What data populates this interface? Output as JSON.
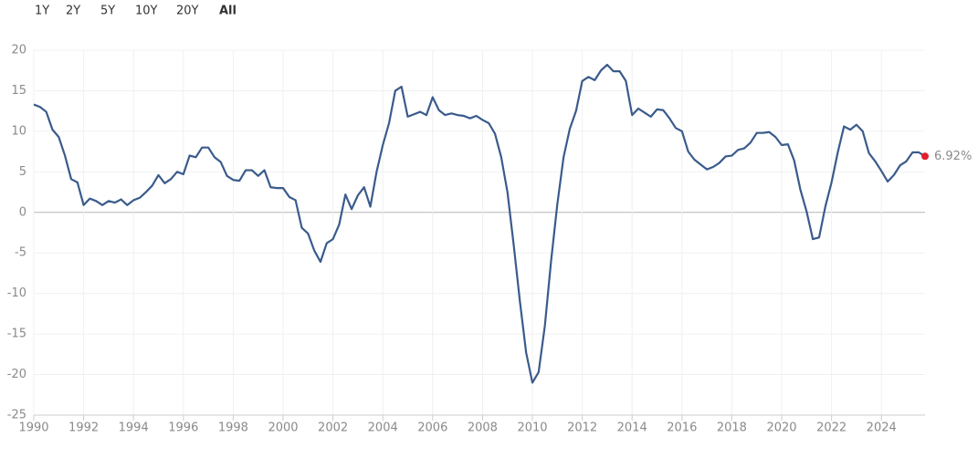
{
  "range_buttons": [
    "1Y",
    "2Y",
    "5Y",
    "10Y",
    "20Y",
    "All"
  ],
  "selected_range": "All",
  "chart_data": {
    "type": "line",
    "x": [
      1990,
      1990.25,
      1990.5,
      1990.75,
      1991,
      1991.25,
      1991.5,
      1991.75,
      1992,
      1992.25,
      1992.5,
      1992.75,
      1993,
      1993.25,
      1993.5,
      1993.75,
      1994,
      1994.25,
      1994.5,
      1994.75,
      1995,
      1995.25,
      1995.5,
      1995.75,
      1996,
      1996.25,
      1996.5,
      1996.75,
      1997,
      1997.25,
      1997.5,
      1997.75,
      1998,
      1998.25,
      1998.5,
      1998.75,
      1999,
      1999.25,
      1999.5,
      1999.75,
      2000,
      2000.25,
      2000.5,
      2000.75,
      2001,
      2001.25,
      2001.5,
      2001.75,
      2002,
      2002.25,
      2002.5,
      2002.75,
      2003,
      2003.25,
      2003.5,
      2003.75,
      2004,
      2004.25,
      2004.5,
      2004.75,
      2005,
      2005.25,
      2005.5,
      2005.75,
      2006,
      2006.25,
      2006.5,
      2006.75,
      2007,
      2007.25,
      2007.5,
      2007.75,
      2008,
      2008.25,
      2008.5,
      2008.75,
      2009,
      2009.25,
      2009.5,
      2009.75,
      2010,
      2010.25,
      2010.5,
      2010.75,
      2011,
      2011.25,
      2011.5,
      2011.75,
      2012,
      2012.25,
      2012.5,
      2012.75,
      2013,
      2013.25,
      2013.5,
      2013.75,
      2014,
      2014.25,
      2014.5,
      2014.75,
      2015,
      2015.25,
      2015.5,
      2015.75,
      2016,
      2016.25,
      2016.5,
      2016.75,
      2017,
      2017.25,
      2017.5,
      2017.75,
      2018,
      2018.25,
      2018.5,
      2018.75,
      2019,
      2019.25,
      2019.5,
      2019.75,
      2020,
      2020.25,
      2020.5,
      2020.75,
      2021,
      2021.25,
      2021.5,
      2021.75,
      2022,
      2022.25,
      2022.5,
      2022.75,
      2023,
      2023.25,
      2023.5,
      2023.75,
      2024,
      2024.25,
      2024.5,
      2024.75,
      2025,
      2025.25,
      2025.5,
      2025.75
    ],
    "series": [
      {
        "color": "#3a5b8c",
        "values": [
          13.3,
          13.0,
          12.4,
          10.2,
          9.3,
          7.0,
          4.1,
          3.7,
          0.9,
          1.7,
          1.4,
          0.9,
          1.4,
          1.2,
          1.6,
          0.9,
          1.5,
          1.8,
          2.5,
          3.3,
          4.6,
          3.6,
          4.1,
          5.0,
          4.7,
          7.0,
          6.8,
          8.0,
          8.0,
          6.8,
          6.2,
          4.5,
          4.0,
          3.9,
          5.2,
          5.2,
          4.5,
          5.2,
          3.1,
          3.0,
          3.0,
          1.9,
          1.5,
          -1.9,
          -2.6,
          -4.7,
          -6.1,
          -3.8,
          -3.3,
          -1.5,
          2.2,
          0.4,
          2.1,
          3.1,
          0.7,
          5.0,
          8.3,
          11.0,
          15.0,
          15.5,
          11.8,
          12.1,
          12.4,
          12.0,
          14.2,
          12.6,
          12.0,
          12.2,
          12.0,
          11.9,
          11.6,
          11.9,
          11.4,
          11.0,
          9.7,
          6.8,
          2.5,
          -4.0,
          -11.0,
          -17.3,
          -21.0,
          -19.7,
          -14.0,
          -6.0,
          1.0,
          6.8,
          10.3,
          12.5,
          16.2,
          16.7,
          16.3,
          17.5,
          18.2,
          17.4,
          17.4,
          16.2,
          12.0,
          12.8,
          12.3,
          11.8,
          12.7,
          12.6,
          11.6,
          10.4,
          10.0,
          7.5,
          6.5,
          5.9,
          5.3,
          5.6,
          6.1,
          6.9,
          7.0,
          7.7,
          7.9,
          8.6,
          9.8,
          9.8,
          9.9,
          9.3,
          8.3,
          8.4,
          6.4,
          2.8,
          0.1,
          -3.3,
          -3.1,
          0.7,
          3.7,
          7.4,
          10.6,
          10.2,
          10.8,
          10.0,
          7.3,
          6.3,
          5.1,
          3.8,
          4.6,
          5.8,
          6.3,
          7.4,
          7.4,
          6.92
        ],
        "value_labels": [
          null,
          null,
          null,
          null,
          null,
          null,
          null,
          null,
          null,
          null,
          null,
          null,
          null,
          null,
          null,
          null,
          null,
          null,
          null,
          null,
          null,
          null,
          null,
          null,
          null,
          null,
          null,
          null,
          null,
          null,
          null,
          null,
          null,
          null,
          null,
          null,
          null,
          null,
          null,
          null,
          null,
          null,
          null,
          null,
          null,
          null,
          null,
          null,
          null,
          null,
          null,
          null,
          null,
          null,
          null,
          null,
          null,
          null,
          null,
          null,
          null,
          null,
          null,
          null,
          null,
          null,
          null,
          null,
          null,
          null,
          null,
          null,
          null,
          null,
          null,
          null,
          null,
          null,
          null,
          null,
          null,
          null,
          null,
          null,
          null,
          null,
          null,
          null,
          null,
          null,
          null,
          null,
          null,
          null,
          null,
          null,
          null,
          null,
          null,
          null,
          null,
          null,
          null,
          null,
          null,
          null,
          null,
          null,
          null,
          null,
          null,
          null,
          null,
          null,
          null,
          null,
          null,
          null,
          null,
          null,
          null,
          null,
          null,
          null,
          null,
          null,
          null,
          null,
          null,
          null,
          null,
          null,
          null,
          null,
          null,
          null,
          null,
          null,
          null,
          null,
          null,
          null,
          null,
          "6.92%"
        ]
      }
    ],
    "end_marker_color": "#e0202e",
    "xlim": [
      1990,
      2025.75
    ],
    "xticks": [
      1990,
      1992,
      1994,
      1996,
      1998,
      2000,
      2002,
      2004,
      2006,
      2008,
      2010,
      2012,
      2014,
      2016,
      2018,
      2020,
      2022,
      2024
    ],
    "ylim": [
      -25,
      20
    ],
    "yticks": [
      -25,
      -20,
      -15,
      -10,
      -5,
      0,
      5,
      10,
      15,
      20
    ],
    "grid": true
  }
}
